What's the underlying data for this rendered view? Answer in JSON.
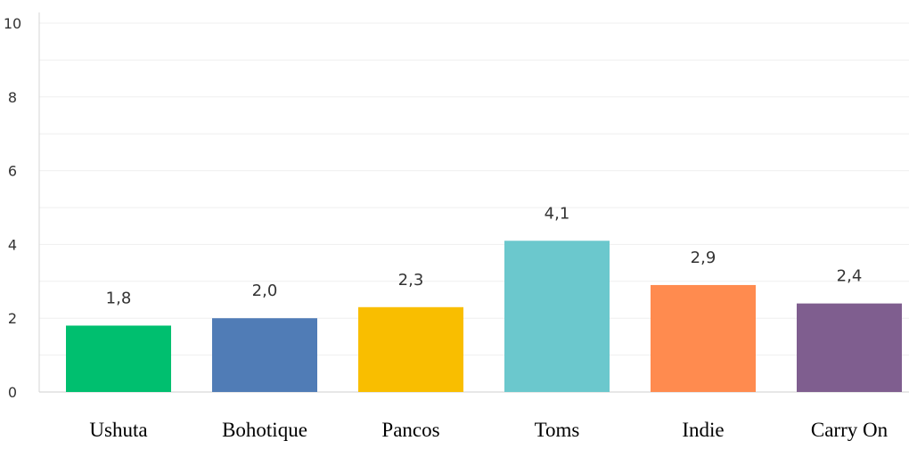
{
  "chart_data": {
    "type": "bar",
    "categories": [
      "Ushuta",
      "Bohotique",
      "Pancos",
      "Toms",
      "Indie",
      "Carry On"
    ],
    "values": [
      1.8,
      2.0,
      2.3,
      4.1,
      2.9,
      2.4
    ],
    "value_labels": [
      "1,8",
      "2,0",
      "2,3",
      "4,1",
      "2,9",
      "2,4"
    ],
    "colors": [
      "#00bf6f",
      "#507cb6",
      "#f9be00",
      "#6bc8cd",
      "#ff8b4f",
      "#7f5e8f"
    ],
    "ylim": [
      0,
      10
    ],
    "yticks": [
      0,
      2,
      4,
      6,
      8,
      10
    ],
    "grid": true,
    "title": "",
    "xlabel": "",
    "ylabel": ""
  }
}
